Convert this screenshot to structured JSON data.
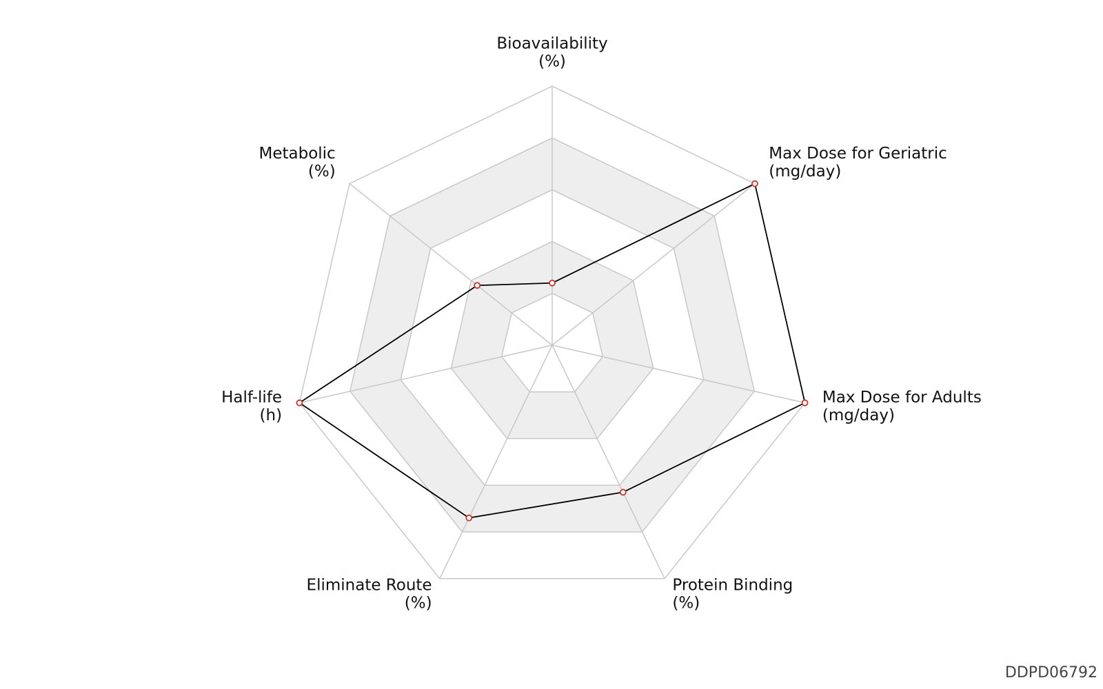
{
  "chart_data": {
    "type": "radar",
    "categories": [
      "Bioavailability",
      "Max Dose for Geriatric",
      "Max Dose for Adults",
      "Protein Binding",
      "Eliminate Route",
      "Half-life",
      "Metabolic"
    ],
    "units": [
      "(%)",
      "(mg/day)",
      "(mg/day)",
      "(%)",
      "(%)",
      "(h)",
      "(%)"
    ],
    "values": [
      24,
      100,
      100,
      63,
      74,
      100,
      37
    ],
    "ylim": [
      0,
      100
    ],
    "yticks": [
      20,
      40,
      60,
      80,
      100
    ],
    "line_color": "#000000",
    "marker_color": "#c0392b",
    "grid": true,
    "watermark": "DDPD06792"
  }
}
